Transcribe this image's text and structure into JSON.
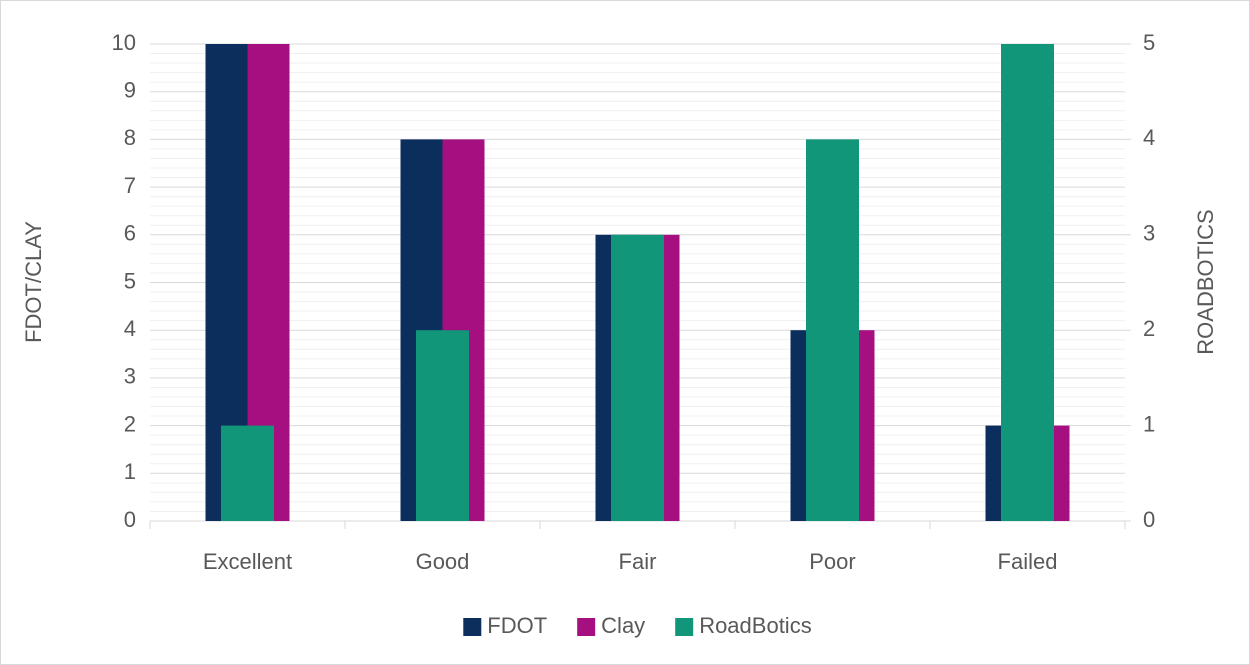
{
  "chart_data": {
    "type": "bar",
    "categories": [
      "Excellent",
      "Good",
      "Fair",
      "Poor",
      "Failed"
    ],
    "series": [
      {
        "name": "FDOT",
        "color": "#0b2e5c",
        "values": [
          10,
          8,
          6,
          4,
          2
        ]
      },
      {
        "name": "Clay",
        "color": "#a50f80",
        "values": [
          10,
          8,
          6,
          4,
          2
        ]
      },
      {
        "name": "RoadBotics",
        "color": "#129679",
        "values": [
          1,
          2,
          3,
          4,
          5
        ],
        "axis": "y2"
      }
    ],
    "y_label": "FDOT/CLAY",
    "y2_label": "ROADBOTICS",
    "ylim": [
      0,
      10
    ],
    "yticks": [
      0,
      1,
      2,
      3,
      4,
      5,
      6,
      7,
      8,
      9,
      10
    ],
    "y2lim": [
      0,
      5
    ],
    "y2ticks": [
      0,
      1,
      2,
      3,
      4,
      5
    ],
    "grid": true,
    "legend": "bottom"
  }
}
